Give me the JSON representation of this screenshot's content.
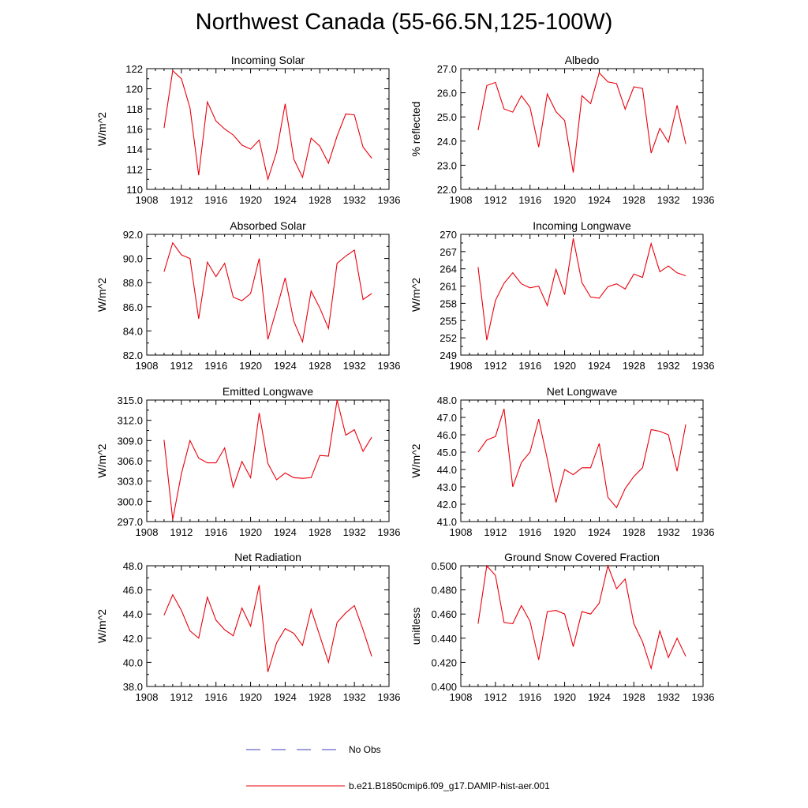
{
  "title": "Northwest Canada (55-66.5N,125-100W)",
  "colors": {
    "model": "#e8000b",
    "obs": "#3c3cbf",
    "axis": "#000000"
  },
  "legend": [
    {
      "label": "No Obs",
      "style": "dashed",
      "color": "#3c3cbf"
    },
    {
      "label": "b.e21.B1850cmip6.f09_g17.DAMIP-hist-aer.001",
      "style": "solid",
      "color": "#e8000b"
    }
  ],
  "chart_data": [
    {
      "type": "line",
      "title": "Incoming Solar",
      "ylabel": "W/m^2",
      "xlim": [
        1908,
        1936
      ],
      "xticks": [
        "1908",
        "1912",
        "1916",
        "1920",
        "1924",
        "1928",
        "1932",
        "1936"
      ],
      "ylim": [
        110,
        122
      ],
      "yticks": [
        "110",
        "112",
        "114",
        "116",
        "118",
        "120",
        "122"
      ],
      "x": [
        1910,
        1911,
        1912,
        1913,
        1914,
        1915,
        1916,
        1917,
        1918,
        1919,
        1920,
        1921,
        1922,
        1923,
        1924,
        1925,
        1926,
        1927,
        1928,
        1929,
        1930,
        1931,
        1932,
        1933,
        1934
      ],
      "values": [
        116.1,
        121.8,
        121.0,
        118.1,
        111.4,
        118.7,
        116.8,
        116.0,
        115.4,
        114.4,
        114.0,
        114.9,
        111.0,
        113.7,
        118.5,
        113.0,
        111.2,
        115.1,
        114.3,
        112.6,
        115.3,
        117.5,
        117.4,
        114.2,
        113.1
      ]
    },
    {
      "type": "line",
      "title": "Albedo",
      "ylabel": "% reflected",
      "xlim": [
        1908,
        1936
      ],
      "xticks": [
        "1908",
        "1912",
        "1916",
        "1920",
        "1924",
        "1928",
        "1932",
        "1936"
      ],
      "ylim": [
        22,
        27
      ],
      "yticks": [
        "22.0",
        "23.0",
        "24.0",
        "25.0",
        "26.0",
        "27.0"
      ],
      "x": [
        1910,
        1911,
        1912,
        1913,
        1914,
        1915,
        1916,
        1917,
        1918,
        1919,
        1920,
        1921,
        1922,
        1923,
        1924,
        1925,
        1926,
        1927,
        1928,
        1929,
        1930,
        1931,
        1932,
        1933,
        1934
      ],
      "values": [
        24.45,
        26.3,
        26.43,
        25.33,
        25.2,
        25.88,
        25.4,
        23.75,
        25.95,
        25.22,
        24.85,
        22.7,
        25.88,
        25.55,
        26.83,
        26.45,
        26.38,
        25.32,
        26.25,
        26.18,
        23.5,
        24.53,
        23.95,
        25.48,
        23.88
      ]
    },
    {
      "type": "line",
      "title": "Absorbed Solar",
      "ylabel": "W/m^2",
      "xlim": [
        1908,
        1936
      ],
      "xticks": [
        "1908",
        "1912",
        "1916",
        "1920",
        "1924",
        "1928",
        "1932",
        "1936"
      ],
      "ylim": [
        82,
        92
      ],
      "yticks": [
        "82.0",
        "84.0",
        "86.0",
        "88.0",
        "90.0",
        "92.0"
      ],
      "x": [
        1910,
        1911,
        1912,
        1913,
        1914,
        1915,
        1916,
        1917,
        1918,
        1919,
        1920,
        1921,
        1922,
        1923,
        1924,
        1925,
        1926,
        1927,
        1928,
        1929,
        1930,
        1931,
        1932,
        1933,
        1934
      ],
      "values": [
        88.9,
        91.3,
        90.3,
        90.0,
        85.0,
        89.7,
        88.5,
        89.6,
        86.8,
        86.5,
        87.1,
        90.0,
        83.3,
        85.8,
        88.4,
        84.8,
        83.1,
        87.3,
        85.9,
        84.2,
        89.6,
        90.2,
        90.7,
        86.6,
        87.1
      ]
    },
    {
      "type": "line",
      "title": "Incoming Longwave",
      "ylabel": "W/m^2",
      "xlim": [
        1908,
        1936
      ],
      "xticks": [
        "1908",
        "1912",
        "1916",
        "1920",
        "1924",
        "1928",
        "1932",
        "1936"
      ],
      "ylim": [
        249,
        270
      ],
      "yticks": [
        "249",
        "252",
        "255",
        "258",
        "261",
        "264",
        "267",
        "270"
      ],
      "x": [
        1910,
        1911,
        1912,
        1913,
        1914,
        1915,
        1916,
        1917,
        1918,
        1919,
        1920,
        1921,
        1922,
        1923,
        1924,
        1925,
        1926,
        1927,
        1928,
        1929,
        1930,
        1931,
        1932,
        1933,
        1934
      ],
      "values": [
        264.3,
        251.6,
        258.5,
        261.5,
        263.3,
        261.4,
        260.7,
        261.0,
        257.6,
        263.9,
        259.5,
        269.3,
        261.6,
        259.1,
        258.9,
        260.9,
        261.4,
        260.5,
        263.1,
        262.5,
        268.4,
        263.5,
        264.5,
        263.3,
        262.8
      ]
    },
    {
      "type": "line",
      "title": "Emitted Longwave",
      "ylabel": "W/m^2",
      "xlim": [
        1908,
        1936
      ],
      "xticks": [
        "1908",
        "1912",
        "1916",
        "1920",
        "1924",
        "1928",
        "1932",
        "1936"
      ],
      "ylim": [
        297,
        315
      ],
      "yticks": [
        "297.0",
        "300.0",
        "303.0",
        "306.0",
        "309.0",
        "312.0",
        "315.0"
      ],
      "x": [
        1910,
        1911,
        1912,
        1913,
        1914,
        1915,
        1916,
        1917,
        1918,
        1919,
        1920,
        1921,
        1922,
        1923,
        1924,
        1925,
        1926,
        1927,
        1928,
        1929,
        1930,
        1931,
        1932,
        1933,
        1934
      ],
      "values": [
        309.1,
        297.3,
        304.1,
        309.0,
        306.4,
        305.7,
        305.7,
        307.9,
        302.1,
        305.9,
        303.5,
        313.1,
        305.6,
        303.2,
        304.2,
        303.5,
        303.4,
        303.5,
        306.8,
        306.7,
        315.0,
        309.8,
        310.6,
        307.4,
        309.5
      ]
    },
    {
      "type": "line",
      "title": "Net Longwave",
      "ylabel": "W/m^2",
      "xlim": [
        1908,
        1936
      ],
      "xticks": [
        "1908",
        "1912",
        "1916",
        "1920",
        "1924",
        "1928",
        "1932",
        "1936"
      ],
      "ylim": [
        41,
        48
      ],
      "yticks": [
        "41.0",
        "42.0",
        "43.0",
        "44.0",
        "45.0",
        "46.0",
        "47.0",
        "48.0"
      ],
      "x": [
        1910,
        1911,
        1912,
        1913,
        1914,
        1915,
        1916,
        1917,
        1918,
        1919,
        1920,
        1921,
        1922,
        1923,
        1924,
        1925,
        1926,
        1927,
        1928,
        1929,
        1930,
        1931,
        1932,
        1933,
        1934
      ],
      "values": [
        45.0,
        45.7,
        45.9,
        47.5,
        43.0,
        44.4,
        45.0,
        46.9,
        44.6,
        42.1,
        44.0,
        43.7,
        44.1,
        44.1,
        45.5,
        42.4,
        41.8,
        42.9,
        43.6,
        44.1,
        46.3,
        46.2,
        46.0,
        43.9,
        46.6
      ]
    },
    {
      "type": "line",
      "title": "Net Radiation",
      "ylabel": "W/m^2",
      "xlim": [
        1908,
        1936
      ],
      "xticks": [
        "1908",
        "1912",
        "1916",
        "1920",
        "1924",
        "1928",
        "1932",
        "1936"
      ],
      "ylim": [
        38,
        48
      ],
      "yticks": [
        "38.0",
        "40.0",
        "42.0",
        "44.0",
        "46.0",
        "48.0"
      ],
      "x": [
        1910,
        1911,
        1912,
        1913,
        1914,
        1915,
        1916,
        1917,
        1918,
        1919,
        1920,
        1921,
        1922,
        1923,
        1924,
        1925,
        1926,
        1927,
        1928,
        1929,
        1930,
        1931,
        1932,
        1933,
        1934
      ],
      "values": [
        43.9,
        45.6,
        44.3,
        42.6,
        42.0,
        45.4,
        43.5,
        42.7,
        42.2,
        44.5,
        43.0,
        46.4,
        39.2,
        41.6,
        42.8,
        42.4,
        41.4,
        44.4,
        42.2,
        40.0,
        43.3,
        44.1,
        44.7,
        42.7,
        40.5
      ]
    },
    {
      "type": "line",
      "title": "Ground Snow Covered Fraction",
      "ylabel": "unitless",
      "xlim": [
        1908,
        1936
      ],
      "xticks": [
        "1908",
        "1912",
        "1916",
        "1920",
        "1924",
        "1928",
        "1932",
        "1936"
      ],
      "ylim": [
        0.4,
        0.5
      ],
      "yticks": [
        "0.400",
        "0.420",
        "0.440",
        "0.460",
        "0.480",
        "0.500"
      ],
      "x": [
        1910,
        1911,
        1912,
        1913,
        1914,
        1915,
        1916,
        1917,
        1918,
        1919,
        1920,
        1921,
        1922,
        1923,
        1924,
        1925,
        1926,
        1927,
        1928,
        1929,
        1930,
        1931,
        1932,
        1933,
        1934
      ],
      "values": [
        0.452,
        0.5,
        0.492,
        0.453,
        0.452,
        0.467,
        0.454,
        0.422,
        0.462,
        0.463,
        0.46,
        0.433,
        0.462,
        0.46,
        0.469,
        0.5,
        0.481,
        0.489,
        0.452,
        0.437,
        0.415,
        0.446,
        0.424,
        0.44,
        0.425
      ]
    }
  ]
}
